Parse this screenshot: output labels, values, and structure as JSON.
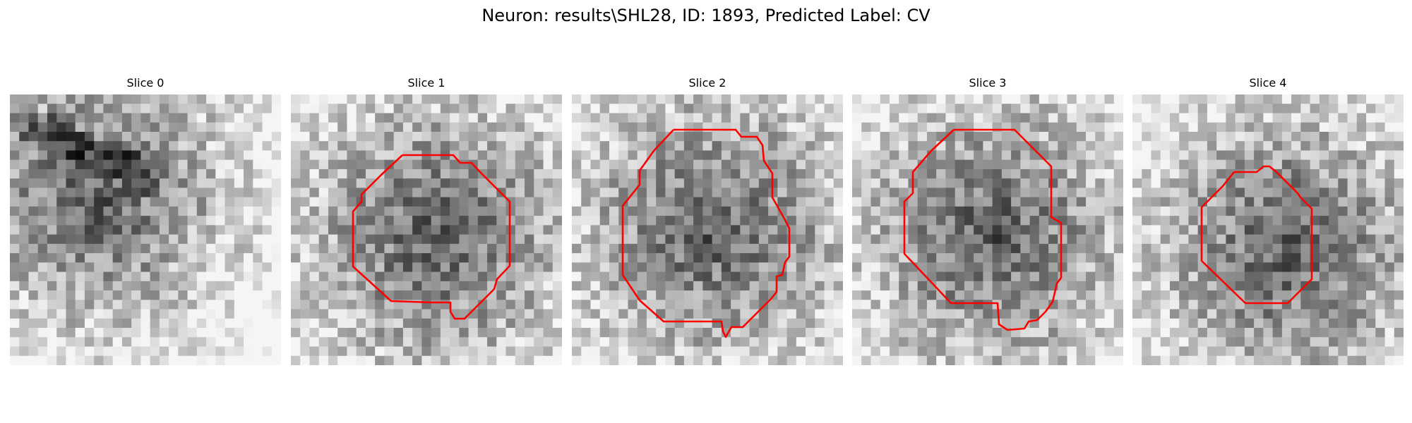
{
  "figure": {
    "title": "Neuron: results\\SHL28, ID: 1893, Predicted Label: CV"
  },
  "panels": [
    {
      "title": "Slice 0",
      "has_contour": false,
      "dark_center": [
        0.3,
        0.35
      ],
      "seed": 11
    },
    {
      "title": "Slice 1",
      "has_contour": true,
      "dark_center": [
        0.52,
        0.5
      ],
      "seed": 23
    },
    {
      "title": "Slice 2",
      "has_contour": true,
      "dark_center": [
        0.5,
        0.48
      ],
      "seed": 37
    },
    {
      "title": "Slice 3",
      "has_contour": true,
      "dark_center": [
        0.5,
        0.5
      ],
      "seed": 41
    },
    {
      "title": "Slice 4",
      "has_contour": true,
      "dark_center": [
        0.55,
        0.55
      ],
      "seed": 53
    }
  ],
  "contour_color": "#ff0000"
}
